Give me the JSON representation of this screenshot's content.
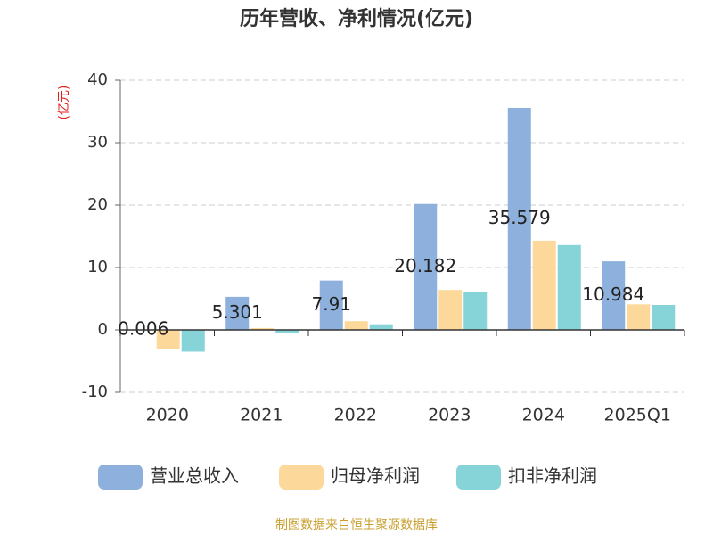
{
  "chart_data": {
    "type": "bar",
    "title": "历年营收、净利情况(亿元)",
    "y_label": "(亿元)",
    "categories": [
      "2020",
      "2021",
      "2022",
      "2023",
      "2024",
      "2025Q1"
    ],
    "series": [
      {
        "name": "营业总收入",
        "color": "#8eb0dc",
        "values": [
          0.006,
          5.301,
          7.91,
          20.182,
          35.579,
          10.984
        ],
        "show_labels": true
      },
      {
        "name": "归母净利润",
        "color": "#fdd89b",
        "values": [
          -3.0,
          0.3,
          1.4,
          6.4,
          14.3,
          4.1
        ]
      },
      {
        "name": "扣非净利润",
        "color": "#87d4d8",
        "values": [
          -3.5,
          -0.5,
          0.9,
          6.1,
          13.6,
          4.0
        ]
      }
    ],
    "ylim": [
      -10,
      40
    ],
    "yticks": [
      -10,
      0,
      10,
      20,
      30,
      40
    ],
    "grid": true,
    "legend": "bottom",
    "source": "制图数据来自恒生聚源数据库"
  }
}
